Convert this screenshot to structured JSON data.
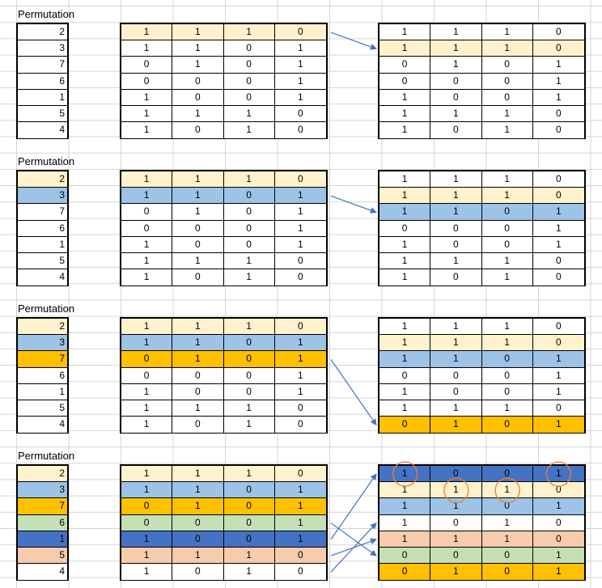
{
  "colors": {
    "cream": "#fff2cc",
    "light_blue": "#9dc3e6",
    "orange": "#ffc000",
    "green": "#c5e0b4",
    "dark_blue": "#4472c4",
    "peach": "#f8cbad",
    "white": "#ffffff",
    "arrow": "#4472c4",
    "circle": "#ed7d31"
  },
  "blocks": [
    {
      "label": "Permutation",
      "perm": [
        {
          "v": "2",
          "c": "white"
        },
        {
          "v": "3",
          "c": "white"
        },
        {
          "v": "7",
          "c": "white"
        },
        {
          "v": "6",
          "c": "white"
        },
        {
          "v": "1",
          "c": "white"
        },
        {
          "v": "5",
          "c": "white"
        },
        {
          "v": "4",
          "c": "white"
        }
      ],
      "matrix": [
        {
          "vals": [
            "1",
            "1",
            "1",
            "0"
          ],
          "c": "cream"
        },
        {
          "vals": [
            "1",
            "1",
            "0",
            "1"
          ],
          "c": "white"
        },
        {
          "vals": [
            "0",
            "1",
            "0",
            "1"
          ],
          "c": "white"
        },
        {
          "vals": [
            "0",
            "0",
            "0",
            "1"
          ],
          "c": "white"
        },
        {
          "vals": [
            "1",
            "0",
            "0",
            "1"
          ],
          "c": "white"
        },
        {
          "vals": [
            "1",
            "1",
            "1",
            "0"
          ],
          "c": "white"
        },
        {
          "vals": [
            "1",
            "0",
            "1",
            "0"
          ],
          "c": "white"
        }
      ],
      "result": [
        {
          "vals": [
            "1",
            "1",
            "1",
            "0"
          ],
          "c": "white"
        },
        {
          "vals": [
            "1",
            "1",
            "1",
            "0"
          ],
          "c": "cream"
        },
        {
          "vals": [
            "0",
            "1",
            "0",
            "1"
          ],
          "c": "white"
        },
        {
          "vals": [
            "0",
            "0",
            "0",
            "1"
          ],
          "c": "white"
        },
        {
          "vals": [
            "1",
            "0",
            "0",
            "1"
          ],
          "c": "white"
        },
        {
          "vals": [
            "1",
            "1",
            "1",
            "0"
          ],
          "c": "white"
        },
        {
          "vals": [
            "1",
            "0",
            "1",
            "0"
          ],
          "c": "white"
        }
      ],
      "arrows": [
        [
          0,
          1
        ]
      ],
      "circles": []
    },
    {
      "label": "Permutation",
      "perm": [
        {
          "v": "2",
          "c": "cream"
        },
        {
          "v": "3",
          "c": "light_blue"
        },
        {
          "v": "7",
          "c": "white"
        },
        {
          "v": "6",
          "c": "white"
        },
        {
          "v": "1",
          "c": "white"
        },
        {
          "v": "5",
          "c": "white"
        },
        {
          "v": "4",
          "c": "white"
        }
      ],
      "matrix": [
        {
          "vals": [
            "1",
            "1",
            "1",
            "0"
          ],
          "c": "cream"
        },
        {
          "vals": [
            "1",
            "1",
            "0",
            "1"
          ],
          "c": "light_blue"
        },
        {
          "vals": [
            "0",
            "1",
            "0",
            "1"
          ],
          "c": "white"
        },
        {
          "vals": [
            "0",
            "0",
            "0",
            "1"
          ],
          "c": "white"
        },
        {
          "vals": [
            "1",
            "0",
            "0",
            "1"
          ],
          "c": "white"
        },
        {
          "vals": [
            "1",
            "1",
            "1",
            "0"
          ],
          "c": "white"
        },
        {
          "vals": [
            "1",
            "0",
            "1",
            "0"
          ],
          "c": "white"
        }
      ],
      "result": [
        {
          "vals": [
            "1",
            "1",
            "1",
            "0"
          ],
          "c": "white"
        },
        {
          "vals": [
            "1",
            "1",
            "1",
            "0"
          ],
          "c": "cream"
        },
        {
          "vals": [
            "1",
            "1",
            "0",
            "1"
          ],
          "c": "light_blue"
        },
        {
          "vals": [
            "0",
            "0",
            "0",
            "1"
          ],
          "c": "white"
        },
        {
          "vals": [
            "1",
            "0",
            "0",
            "1"
          ],
          "c": "white"
        },
        {
          "vals": [
            "1",
            "1",
            "1",
            "0"
          ],
          "c": "white"
        },
        {
          "vals": [
            "1",
            "0",
            "1",
            "0"
          ],
          "c": "white"
        }
      ],
      "arrows": [
        [
          1,
          2
        ]
      ],
      "circles": []
    },
    {
      "label": "Permutation",
      "perm": [
        {
          "v": "2",
          "c": "cream"
        },
        {
          "v": "3",
          "c": "light_blue"
        },
        {
          "v": "7",
          "c": "orange"
        },
        {
          "v": "6",
          "c": "white"
        },
        {
          "v": "1",
          "c": "white"
        },
        {
          "v": "5",
          "c": "white"
        },
        {
          "v": "4",
          "c": "white"
        }
      ],
      "matrix": [
        {
          "vals": [
            "1",
            "1",
            "1",
            "0"
          ],
          "c": "cream"
        },
        {
          "vals": [
            "1",
            "1",
            "0",
            "1"
          ],
          "c": "light_blue"
        },
        {
          "vals": [
            "0",
            "1",
            "0",
            "1"
          ],
          "c": "orange"
        },
        {
          "vals": [
            "0",
            "0",
            "0",
            "1"
          ],
          "c": "white"
        },
        {
          "vals": [
            "1",
            "0",
            "0",
            "1"
          ],
          "c": "white"
        },
        {
          "vals": [
            "1",
            "1",
            "1",
            "0"
          ],
          "c": "white"
        },
        {
          "vals": [
            "1",
            "0",
            "1",
            "0"
          ],
          "c": "white"
        }
      ],
      "result": [
        {
          "vals": [
            "1",
            "1",
            "1",
            "0"
          ],
          "c": "white"
        },
        {
          "vals": [
            "1",
            "1",
            "1",
            "0"
          ],
          "c": "cream"
        },
        {
          "vals": [
            "1",
            "1",
            "0",
            "1"
          ],
          "c": "light_blue"
        },
        {
          "vals": [
            "0",
            "0",
            "0",
            "1"
          ],
          "c": "white"
        },
        {
          "vals": [
            "1",
            "0",
            "0",
            "1"
          ],
          "c": "white"
        },
        {
          "vals": [
            "1",
            "1",
            "1",
            "0"
          ],
          "c": "white"
        },
        {
          "vals": [
            "0",
            "1",
            "0",
            "1"
          ],
          "c": "orange"
        }
      ],
      "arrows": [
        [
          2,
          6
        ]
      ],
      "circles": []
    },
    {
      "label": "Permutation",
      "perm": [
        {
          "v": "2",
          "c": "cream"
        },
        {
          "v": "3",
          "c": "light_blue"
        },
        {
          "v": "7",
          "c": "orange"
        },
        {
          "v": "6",
          "c": "green"
        },
        {
          "v": "1",
          "c": "dark_blue"
        },
        {
          "v": "5",
          "c": "peach"
        },
        {
          "v": "4",
          "c": "white"
        }
      ],
      "matrix": [
        {
          "vals": [
            "1",
            "1",
            "1",
            "0"
          ],
          "c": "cream"
        },
        {
          "vals": [
            "1",
            "1",
            "0",
            "1"
          ],
          "c": "light_blue"
        },
        {
          "vals": [
            "0",
            "1",
            "0",
            "1"
          ],
          "c": "orange"
        },
        {
          "vals": [
            "0",
            "0",
            "0",
            "1"
          ],
          "c": "green"
        },
        {
          "vals": [
            "1",
            "0",
            "0",
            "1"
          ],
          "c": "dark_blue"
        },
        {
          "vals": [
            "1",
            "1",
            "1",
            "0"
          ],
          "c": "peach"
        },
        {
          "vals": [
            "1",
            "0",
            "1",
            "0"
          ],
          "c": "white"
        }
      ],
      "result": [
        {
          "vals": [
            "1",
            "0",
            "0",
            "1"
          ],
          "c": "dark_blue"
        },
        {
          "vals": [
            "1",
            "1",
            "1",
            "0"
          ],
          "c": "cream"
        },
        {
          "vals": [
            "1",
            "1",
            "0",
            "1"
          ],
          "c": "light_blue"
        },
        {
          "vals": [
            "1",
            "0",
            "1",
            "0"
          ],
          "c": "white"
        },
        {
          "vals": [
            "1",
            "1",
            "1",
            "0"
          ],
          "c": "peach"
        },
        {
          "vals": [
            "0",
            "0",
            "0",
            "1"
          ],
          "c": "green"
        },
        {
          "vals": [
            "0",
            "1",
            "0",
            "1"
          ],
          "c": "orange"
        }
      ],
      "arrows": [
        [
          4,
          0
        ],
        [
          5,
          4
        ],
        [
          6,
          3
        ],
        [
          3,
          5
        ]
      ],
      "circles": [
        [
          0,
          0
        ],
        [
          0,
          3
        ],
        [
          1,
          1
        ],
        [
          1,
          2
        ]
      ]
    }
  ]
}
